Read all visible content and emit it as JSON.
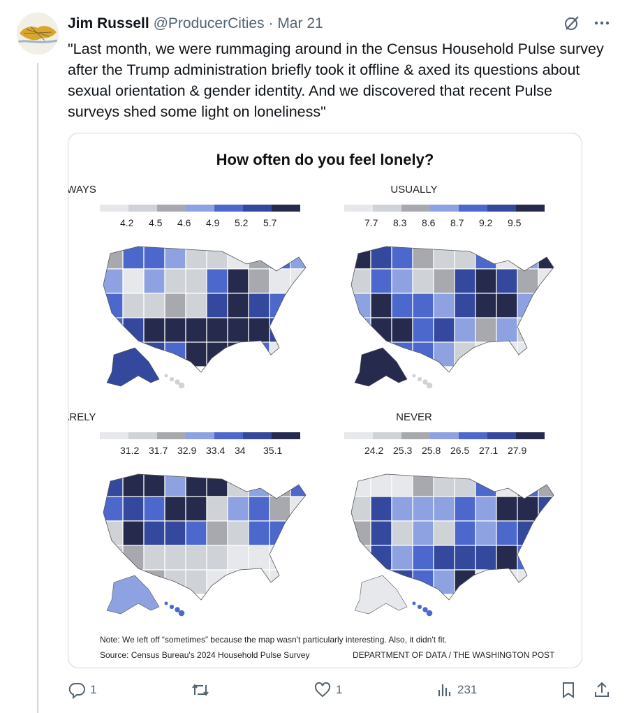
{
  "author": {
    "name": "Jim Russell",
    "handle": "@ProducerCities",
    "separator": "·",
    "date": "Mar 21"
  },
  "tweet": {
    "text": "\"Last month, we were rummaging around in the Census Household Pulse survey after the Trump administration briefly took it offline & axed its questions about sexual orientation & gender identity. And we discovered that recent Pulse surveys shed some light on loneliness\""
  },
  "icons": {
    "grok": "grok-icon",
    "more": "more-icon",
    "reply": "reply-icon",
    "retweet": "retweet-icon",
    "like": "like-icon",
    "views": "views-icon",
    "bookmark": "bookmark-icon",
    "share": "share-icon"
  },
  "card": {
    "title": "How often do you feel lonely?",
    "note": "Note: We left off “sometimes” because the map wasn't particularly interesting. Also, it didn't fit.",
    "source": "Source: Census Bureau's 2024 Household Pulse Survey",
    "credit": "DEPARTMENT OF DATA / THE WASHINGTON POST"
  },
  "palette": [
    "#e6e8ec",
    "#cfd2d7",
    "#a7a9ae",
    "#8ea2e2",
    "#4d68cc",
    "#34489e",
    "#262a4d"
  ],
  "chart_data": [
    {
      "type": "map",
      "title": "ALWAYS",
      "legend_ticks": [
        "4.2",
        "4.5",
        "4.6",
        "4.9",
        "5.2",
        "5.7"
      ]
    },
    {
      "type": "map",
      "title": "USUALLY",
      "legend_ticks": [
        "7.7",
        "8.3",
        "8.6",
        "8.7",
        "9.2",
        "9.5"
      ]
    },
    {
      "type": "map",
      "title": "RARELY",
      "legend_ticks": [
        "31.2",
        "31.7",
        "32.9",
        "33.4",
        "34",
        "35.1"
      ]
    },
    {
      "type": "map",
      "title": "NEVER",
      "legend_ticks": [
        "24.2",
        "25.3",
        "25.8",
        "26.5",
        "27.1",
        "27.9"
      ]
    }
  ],
  "actions": {
    "replies": "1",
    "likes": "1",
    "views": "231"
  }
}
